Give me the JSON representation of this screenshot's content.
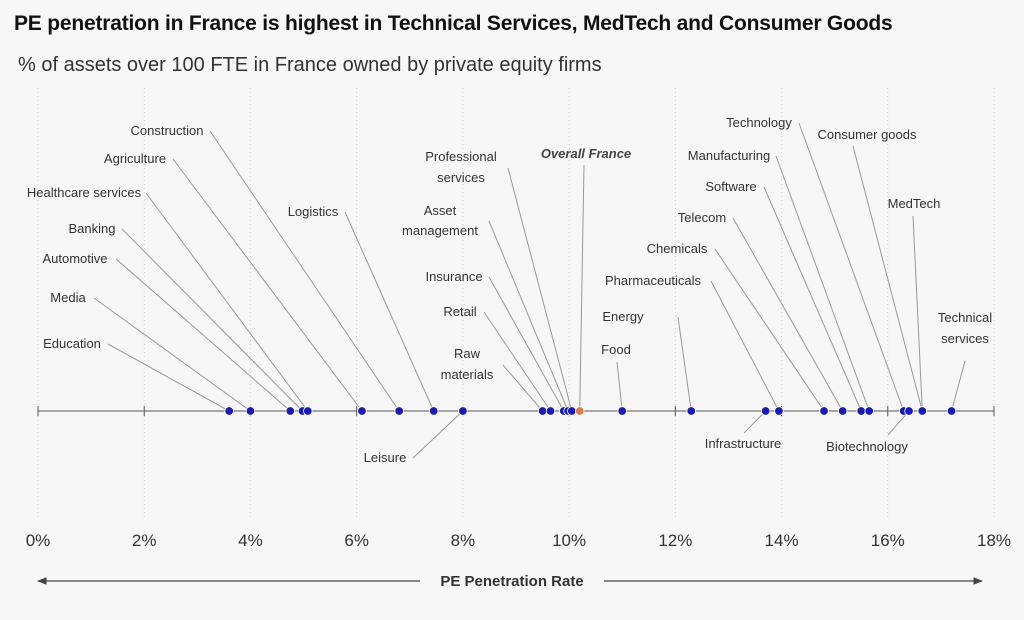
{
  "title": "PE penetration in France is highest in Technical Services, MedTech and Consumer Goods",
  "subtitle": "% of assets over 100 FTE in France owned by private equity firms",
  "chart_data": {
    "type": "scatter",
    "title": "PE penetration in France is highest in Technical Services, MedTech and Consumer Goods",
    "subtitle": "% of assets over 100 FTE in France owned by private equity firms",
    "xlabel": "PE Penetration Rate",
    "xlim": [
      0,
      18
    ],
    "x_ticks": [
      "0%",
      "2%",
      "4%",
      "6%",
      "8%",
      "10%",
      "12%",
      "14%",
      "16%",
      "18%"
    ],
    "grid": "vertical dotted",
    "colors": {
      "sector": "#1a1ab8",
      "overall": "#e07b45",
      "leader": "#999999",
      "axis": "#555555"
    },
    "points": [
      {
        "name": "Education",
        "x": 3.6
      },
      {
        "name": "Media",
        "x": 4.0
      },
      {
        "name": "Automotive",
        "x": 4.75
      },
      {
        "name": "Banking",
        "x": 4.98
      },
      {
        "name": "Healthcare services",
        "x": 5.08
      },
      {
        "name": "Agriculture",
        "x": 6.1
      },
      {
        "name": "Construction",
        "x": 6.8
      },
      {
        "name": "Logistics",
        "x": 7.45
      },
      {
        "name": "Leisure",
        "x": 8.0
      },
      {
        "name": "Raw materials",
        "x": 9.5
      },
      {
        "name": "Retail",
        "x": 9.65
      },
      {
        "name": "Insurance",
        "x": 9.9
      },
      {
        "name": "Asset management",
        "x": 9.98
      },
      {
        "name": "Professional services",
        "x": 10.05
      },
      {
        "name": "Overall France",
        "x": 10.2,
        "highlight": true
      },
      {
        "name": "Food",
        "x": 11.0
      },
      {
        "name": "Energy",
        "x": 12.3
      },
      {
        "name": "Infrastructure",
        "x": 13.7
      },
      {
        "name": "Pharmaceuticals",
        "x": 13.95
      },
      {
        "name": "Chemicals",
        "x": 14.8
      },
      {
        "name": "Telecom",
        "x": 15.15
      },
      {
        "name": "Software",
        "x": 15.5
      },
      {
        "name": "Manufacturing",
        "x": 15.65
      },
      {
        "name": "Technology",
        "x": 16.3
      },
      {
        "name": "Biotechnology",
        "x": 16.4
      },
      {
        "name": "Consumer goods",
        "x": 16.65
      },
      {
        "name": "MedTech",
        "x": 16.65
      },
      {
        "name": "Technical services",
        "x": 17.2
      }
    ]
  }
}
